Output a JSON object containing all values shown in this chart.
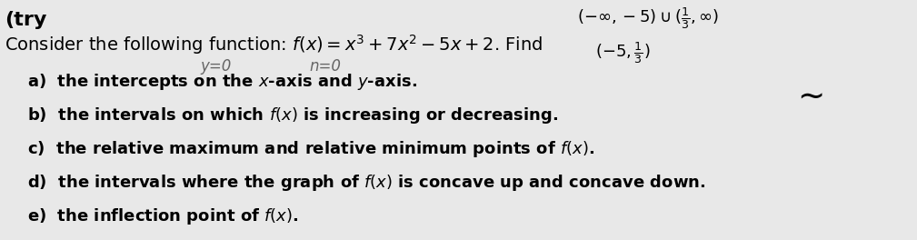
{
  "background_color": "#e8e8e8",
  "try_text": "(try",
  "main_text": "Consider the following function: $f(x) = x^3 + 7x^2 - 5x + 2$. Find",
  "handwritten_y": "y=0",
  "handwritten_n": "n=0",
  "top_right_1": "$(-\\infty, -5) \\cup (\\frac{1}{3}, \\infty)$",
  "top_right_2": "$(-5, \\frac{1}{3})$",
  "items": [
    "a)  the intercepts on the $x$-axis and $y$-axis.",
    "b)  the intervals on which $f(x)$ is increasing or decreasing.",
    "c)  the relative maximum and relative minimum points of $f(x)$.",
    "d)  the intervals where the graph of $f(x)$ is concave up and concave down.",
    "e)  the inflection point of $f(x)$."
  ],
  "try_fontsize": 16,
  "main_fontsize": 14,
  "hand_fontsize": 12,
  "item_fontsize": 13,
  "topright_fontsize": 13
}
